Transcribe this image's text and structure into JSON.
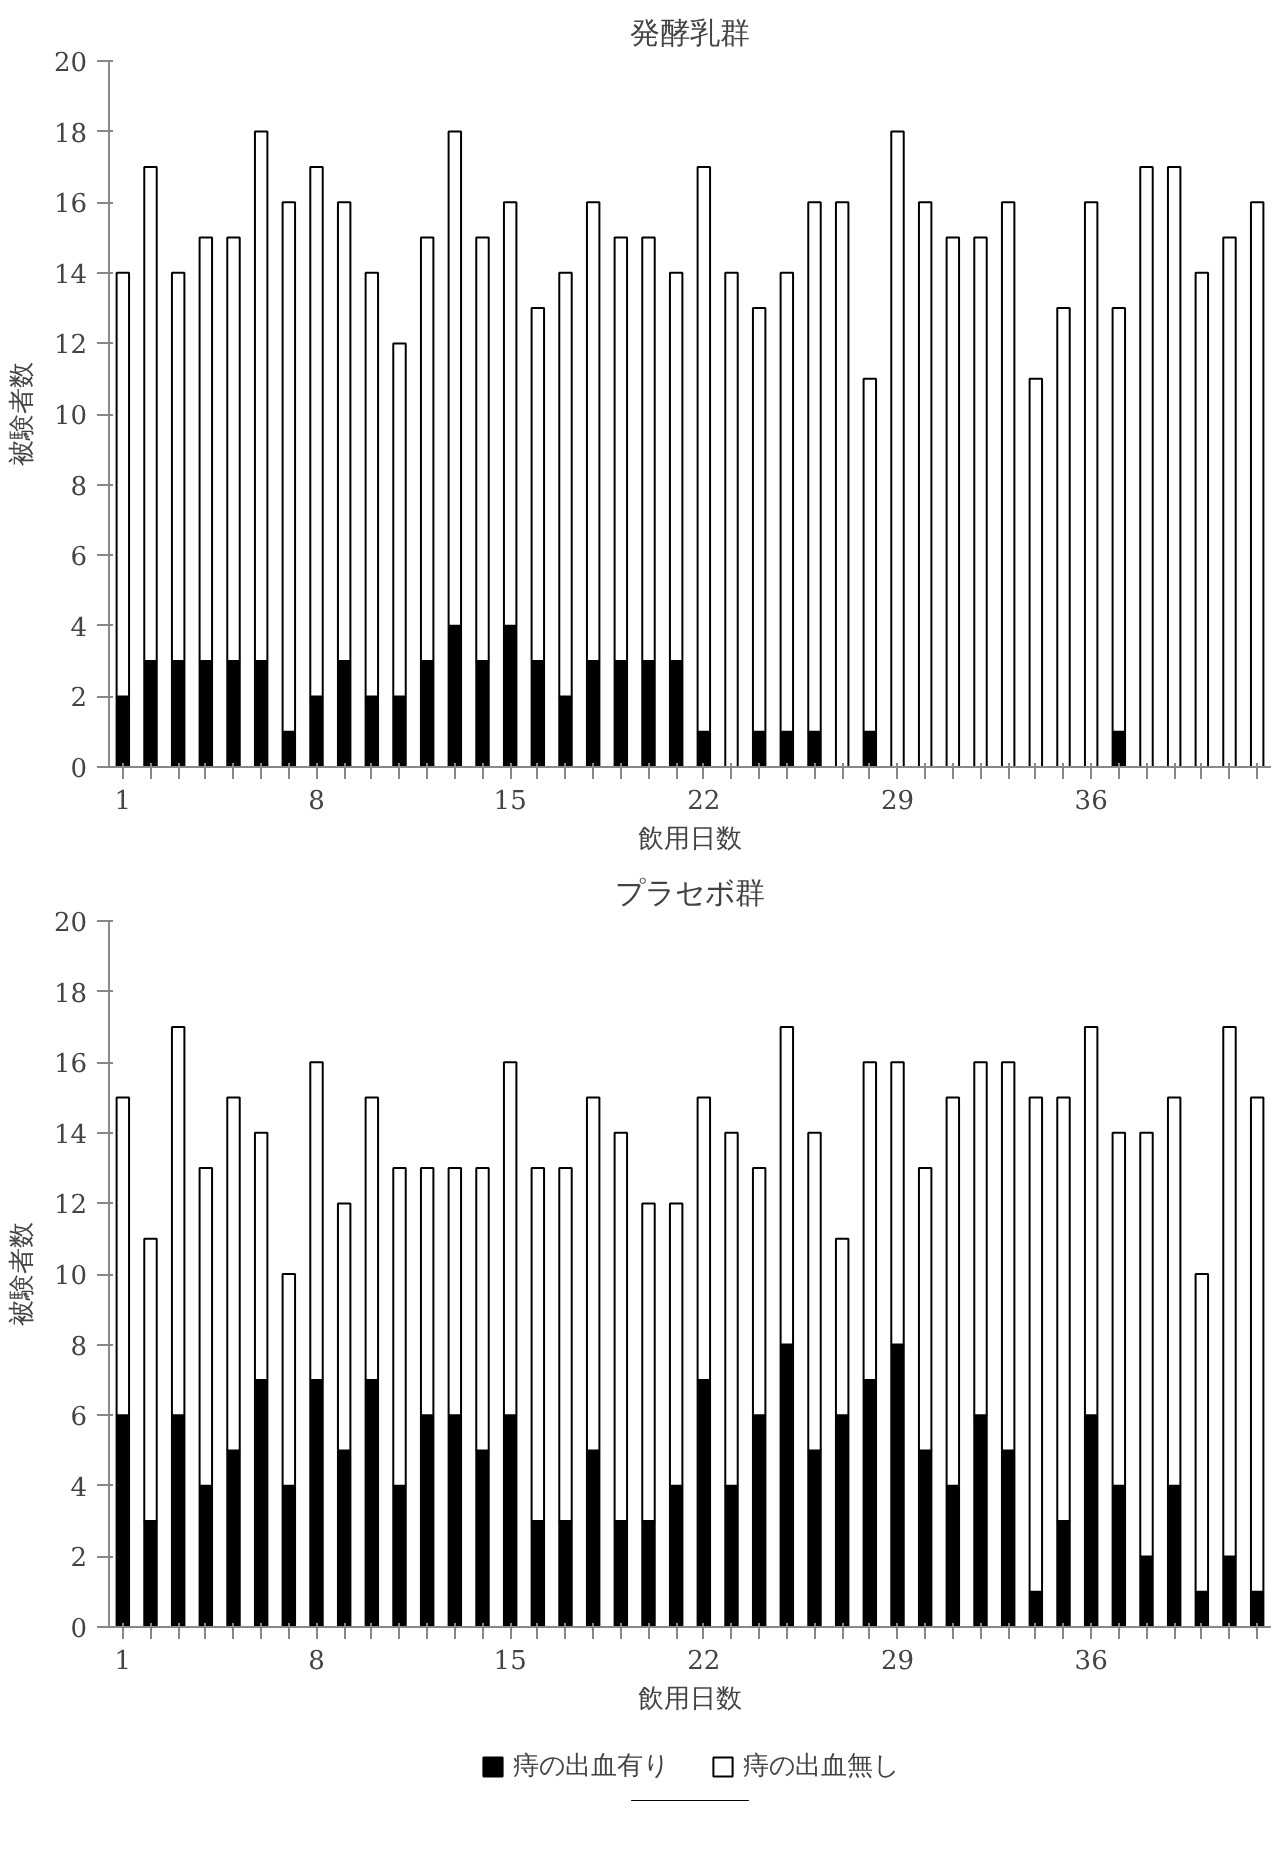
{
  "chart_data": [
    {
      "type": "bar",
      "title": "発酵乳群",
      "xlabel": "飲用日数",
      "ylabel": "被験者数",
      "stacked": true,
      "legend": false,
      "grid": false,
      "categories": [
        "1",
        null,
        null,
        null,
        null,
        null,
        null,
        "8",
        null,
        null,
        null,
        null,
        null,
        null,
        "15",
        null,
        null,
        null,
        null,
        null,
        null,
        "22",
        null,
        null,
        null,
        null,
        null,
        null,
        "29",
        null,
        null,
        null,
        null,
        null,
        null,
        "36",
        null,
        null,
        null,
        null,
        null,
        null
      ],
      "ylim": [
        0,
        20
      ],
      "yticks": [
        0,
        2,
        4,
        6,
        8,
        10,
        12,
        14,
        16,
        18,
        20
      ],
      "series": [
        {
          "color": "#000000",
          "values": [
            2,
            3,
            3,
            3,
            3,
            3,
            1,
            2,
            3,
            2,
            2,
            3,
            4,
            3,
            4,
            3,
            2,
            3,
            3,
            3,
            3,
            1,
            0,
            1,
            1,
            1,
            0,
            1,
            0,
            0,
            0,
            0,
            0,
            0,
            0,
            0,
            1,
            0,
            0,
            0,
            0,
            0
          ]
        },
        {
          "color": "#ffffff",
          "values": [
            12,
            14,
            11,
            12,
            12,
            15,
            15,
            15,
            13,
            12,
            10,
            12,
            14,
            12,
            12,
            10,
            12,
            13,
            12,
            12,
            11,
            16,
            14,
            12,
            13,
            15,
            16,
            10,
            18,
            16,
            15,
            15,
            16,
            11,
            13,
            16,
            12,
            17,
            17,
            14,
            15,
            16
          ]
        }
      ]
    },
    {
      "type": "bar",
      "title": "プラセボ群",
      "xlabel": "飲用日数",
      "ylabel": "被験者数",
      "stacked": true,
      "legend": "bottom",
      "grid": false,
      "categories": [
        "1",
        null,
        null,
        null,
        null,
        null,
        null,
        "8",
        null,
        null,
        null,
        null,
        null,
        null,
        "15",
        null,
        null,
        null,
        null,
        null,
        null,
        "22",
        null,
        null,
        null,
        null,
        null,
        null,
        "29",
        null,
        null,
        null,
        null,
        null,
        null,
        "36",
        null,
        null,
        null,
        null,
        null,
        null
      ],
      "ylim": [
        0,
        20
      ],
      "yticks": [
        0,
        2,
        4,
        6,
        8,
        10,
        12,
        14,
        16,
        18,
        20
      ],
      "series": [
        {
          "name": "痔の出血有り",
          "color": "#000000",
          "values": [
            6,
            3,
            6,
            4,
            5,
            7,
            4,
            7,
            5,
            7,
            4,
            6,
            6,
            5,
            6,
            3,
            3,
            5,
            3,
            3,
            4,
            7,
            4,
            6,
            8,
            5,
            6,
            7,
            8,
            5,
            4,
            6,
            5,
            1,
            3,
            6,
            4,
            2,
            4,
            1,
            2,
            1
          ]
        },
        {
          "name": "痔の出血無し",
          "color": "#ffffff",
          "values": [
            9,
            8,
            11,
            9,
            10,
            7,
            6,
            9,
            7,
            8,
            9,
            7,
            7,
            8,
            10,
            10,
            10,
            10,
            11,
            9,
            8,
            8,
            10,
            7,
            9,
            9,
            5,
            9,
            8,
            8,
            11,
            10,
            11,
            14,
            12,
            11,
            10,
            12,
            11,
            9,
            15,
            14
          ]
        }
      ]
    }
  ]
}
